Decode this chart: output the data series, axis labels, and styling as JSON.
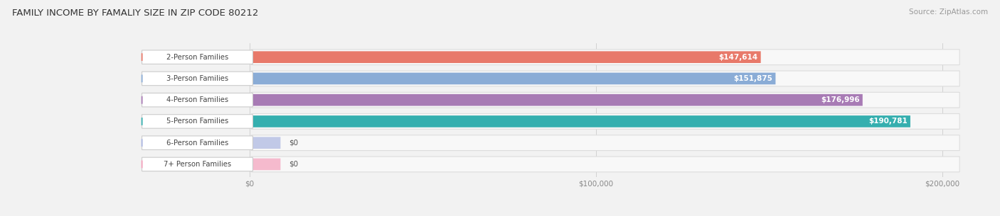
{
  "title": "FAMILY INCOME BY FAMALIY SIZE IN ZIP CODE 80212",
  "source": "Source: ZipAtlas.com",
  "categories": [
    "2-Person Families",
    "3-Person Families",
    "4-Person Families",
    "5-Person Families",
    "6-Person Families",
    "7+ Person Families"
  ],
  "values": [
    147614,
    151875,
    176996,
    190781,
    0,
    0
  ],
  "bar_colors": [
    "#E8796A",
    "#8AACD6",
    "#A87BB5",
    "#35AFAF",
    "#AAB5E0",
    "#F4A0BC"
  ],
  "value_labels": [
    "$147,614",
    "$151,875",
    "$176,996",
    "$190,781",
    "$0",
    "$0"
  ],
  "xmax": 200000,
  "xticklabels": [
    "$0",
    "$100,000",
    "$200,000"
  ],
  "background_color": "#f2f2f2",
  "bar_bg_color": "#ffffff",
  "label_box_color": "#ffffff",
  "zero_stub_values": [
    8000,
    8000
  ]
}
